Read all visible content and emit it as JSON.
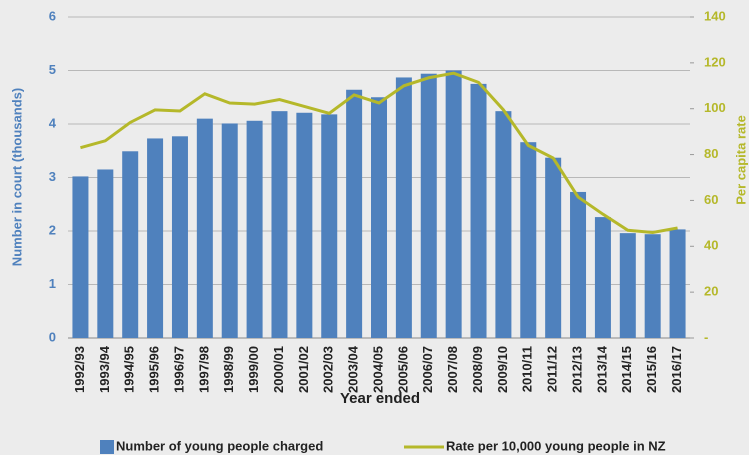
{
  "chart_data": {
    "type": "bar_line",
    "categories": [
      "1992/93",
      "1993/94",
      "1994/95",
      "1995/96",
      "1996/97",
      "1997/98",
      "1998/99",
      "1999/00",
      "2000/01",
      "2001/02",
      "2002/03",
      "2003/04",
      "2004/05",
      "2005/06",
      "2006/07",
      "2007/08",
      "2008/09",
      "2009/10",
      "2010/11",
      "2011/12",
      "2012/13",
      "2013/14",
      "2014/15",
      "2015/16",
      "2016/17"
    ],
    "series": [
      {
        "name": "Number of young people charged",
        "type": "bar",
        "color": "#4f81bd",
        "values": [
          3.02,
          3.15,
          3.49,
          3.73,
          3.77,
          4.1,
          4.01,
          4.06,
          4.24,
          4.21,
          4.18,
          4.64,
          4.5,
          4.87,
          4.94,
          5.0,
          4.75,
          4.24,
          3.66,
          3.37,
          2.73,
          2.26,
          1.96,
          1.94,
          2.03
        ]
      },
      {
        "name": "Rate per 10,000 young people in NZ",
        "type": "line",
        "axis": "y2",
        "color": "#b5b82a",
        "values": [
          83,
          86,
          94,
          99.5,
          99,
          106.5,
          102.5,
          102,
          104,
          101,
          98,
          106,
          102.5,
          110,
          113.5,
          115.5,
          111.5,
          99.5,
          84,
          78.5,
          61.5,
          54,
          47,
          46,
          48
        ]
      }
    ],
    "xlabel": "Year ended",
    "ylabel": "Number in court (thousands)",
    "y2label": "Per capita rate",
    "ylim": [
      0,
      6
    ],
    "yticks": [
      0,
      1,
      2,
      3,
      4,
      5,
      6
    ],
    "y2lim": [
      0,
      140
    ],
    "y2ticks": [
      {
        "value": 0,
        "label": "-"
      },
      20,
      40,
      60,
      80,
      100,
      120,
      140
    ],
    "grid": true,
    "legend": "bottom"
  }
}
